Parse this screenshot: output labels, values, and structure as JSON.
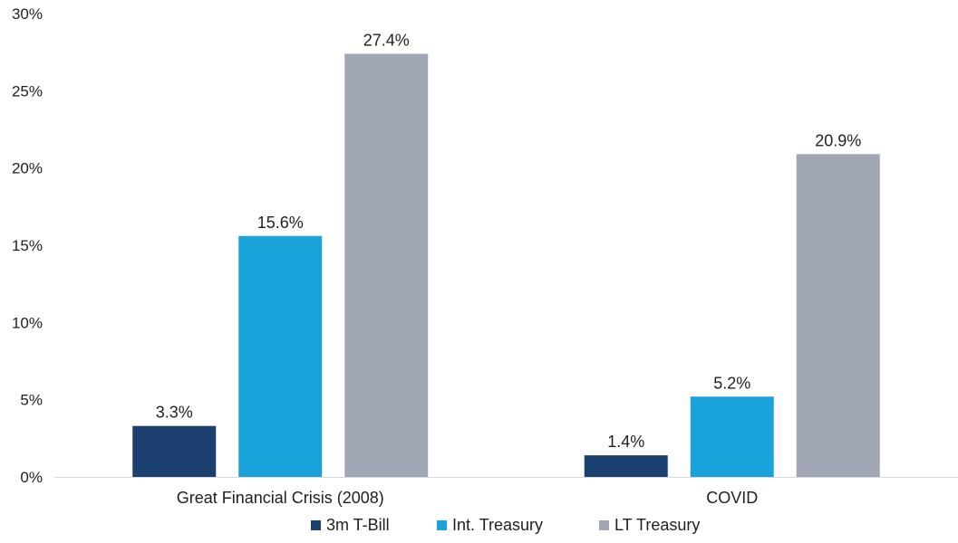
{
  "chart_data": {
    "type": "bar",
    "categories": [
      "Great Financial Crisis (2008)",
      "COVID"
    ],
    "series": [
      {
        "name": "3m T-Bill",
        "values": [
          3.3,
          1.4
        ],
        "labels": [
          "3.3%",
          "1.4%"
        ],
        "color": "#1b3f6e"
      },
      {
        "name": "Int. Treasury",
        "values": [
          15.6,
          5.2
        ],
        "labels": [
          "15.6%",
          "5.2%"
        ],
        "color": "#1aa3db"
      },
      {
        "name": "LT Treasury",
        "values": [
          27.4,
          20.9
        ],
        "labels": [
          "27.4%",
          "20.9%"
        ],
        "color": "#a1a6b4"
      }
    ],
    "ylim": [
      0,
      30
    ],
    "y_ticks": [
      "0%",
      "5%",
      "10%",
      "15%",
      "20%",
      "25%",
      "30%"
    ],
    "grid": false,
    "legend_position": "bottom"
  }
}
